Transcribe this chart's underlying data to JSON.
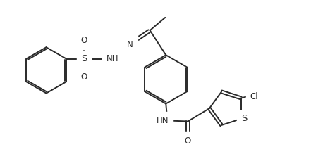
{
  "background_color": "#ffffff",
  "line_color": "#2a2a2a",
  "line_width": 1.4,
  "font_size": 8.5,
  "figsize": [
    4.58,
    2.19
  ],
  "dpi": 100,
  "xlim": [
    0,
    9.5
  ],
  "ylim": [
    0,
    4.5
  ]
}
